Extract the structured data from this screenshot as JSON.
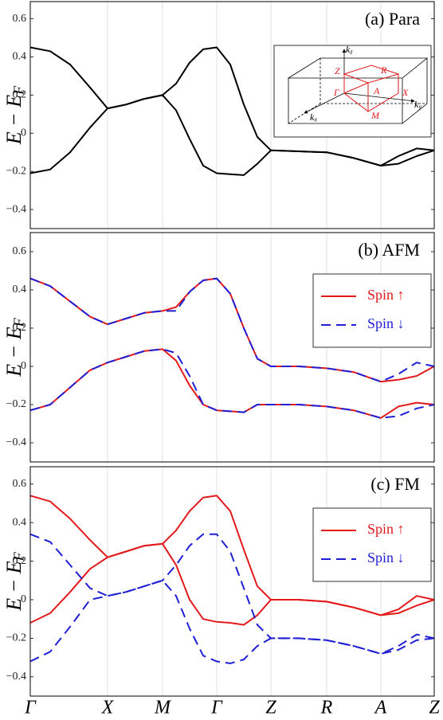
{
  "chart_data": [
    {
      "type": "line",
      "title": "(a) Para",
      "y_label": {
        "text": "E − E",
        "sub": "F"
      },
      "inset_labels": [
        {
          "text": "k",
          "sub": "z"
        },
        "Z",
        "R",
        "Γ",
        "A",
        "X",
        "M",
        {
          "text": "k",
          "sub": "y"
        },
        {
          "text": "k",
          "sub": "x"
        }
      ],
      "xlim": [
        0,
        5.07
      ],
      "xticks": [
        0,
        0.97,
        1.66,
        2.34,
        3.02,
        3.72,
        4.4,
        5.07
      ],
      "grid": true,
      "ylim": [
        -0.5,
        0.69
      ],
      "yticks": [
        {
          "value": -0.4,
          "label": "−0.4"
        },
        {
          "value": -0.2,
          "label": "−0.2"
        },
        0,
        0.2,
        0.4,
        0.6
      ],
      "x": [
        0,
        0.25,
        0.5,
        0.75,
        0.97,
        1.2,
        1.43,
        1.66,
        1.83,
        2.0,
        2.17,
        2.34,
        2.51,
        2.68,
        2.85,
        3.02,
        3.37,
        3.72,
        4.06,
        4.4,
        4.62,
        4.85,
        5.07
      ],
      "series": [
        {
          "color": "#000000",
          "line_style": "solid",
          "bands": [
            [
              0.45,
              0.43,
              0.36,
              0.24,
              0.13,
              0.15,
              0.18,
              0.2,
              0.26,
              0.37,
              0.44,
              0.45,
              0.36,
              0.15,
              -0.02,
              -0.09,
              -0.095,
              -0.1,
              -0.13,
              -0.17,
              -0.12,
              -0.08,
              -0.09
            ],
            [
              -0.21,
              -0.19,
              -0.1,
              0.03,
              0.13,
              0.15,
              0.18,
              0.2,
              0.12,
              -0.03,
              -0.17,
              -0.21,
              -0.215,
              -0.22,
              -0.16,
              -0.09,
              -0.095,
              -0.1,
              -0.13,
              -0.17,
              -0.16,
              -0.12,
              -0.09
            ]
          ]
        }
      ]
    },
    {
      "type": "line",
      "title": "(b) AFM",
      "y_label": {
        "text": "E − E",
        "sub": "F"
      },
      "legend": "upper right",
      "xlim": [
        0,
        5.07
      ],
      "xticks": [
        0,
        0.97,
        1.66,
        2.34,
        3.02,
        3.72,
        4.4,
        5.07
      ],
      "grid": true,
      "ylim": [
        -0.5,
        0.7
      ],
      "yticks": [
        {
          "value": -0.4,
          "label": "−0.4"
        },
        {
          "value": -0.2,
          "label": "−0.2"
        },
        0,
        0.2,
        0.4,
        0.6
      ],
      "x": [
        0,
        0.25,
        0.5,
        0.75,
        0.97,
        1.2,
        1.43,
        1.66,
        1.83,
        2.0,
        2.17,
        2.34,
        2.51,
        2.68,
        2.85,
        3.02,
        3.37,
        3.72,
        4.06,
        4.4,
        4.62,
        4.85,
        5.07
      ],
      "series": [
        {
          "name": "Spin ↑",
          "color": "#e31a1c",
          "line_style": "solid",
          "bands": [
            [
              0.46,
              0.42,
              0.34,
              0.26,
              0.22,
              0.25,
              0.28,
              0.29,
              0.31,
              0.39,
              0.45,
              0.46,
              0.38,
              0.2,
              0.04,
              0,
              0,
              -0.01,
              -0.03,
              -0.08,
              -0.07,
              -0.05,
              0
            ],
            [
              -0.23,
              -0.2,
              -0.11,
              -0.02,
              0.02,
              0.05,
              0.08,
              0.09,
              0.03,
              -0.1,
              -0.2,
              -0.23,
              -0.235,
              -0.24,
              -0.2,
              -0.2,
              -0.2,
              -0.21,
              -0.23,
              -0.27,
              -0.21,
              -0.19,
              -0.2
            ]
          ]
        },
        {
          "name": "Spin ↓",
          "color": "#1f1fd6",
          "line_style": "dashed",
          "bands": [
            [
              0.46,
              0.42,
              0.34,
              0.26,
              0.22,
              0.25,
              0.28,
              0.29,
              0.29,
              0.39,
              0.45,
              0.46,
              0.38,
              0.2,
              0.04,
              0,
              0,
              -0.01,
              -0.03,
              -0.08,
              -0.04,
              0.02,
              0
            ],
            [
              -0.23,
              -0.2,
              -0.11,
              -0.02,
              0.02,
              0.05,
              0.08,
              0.09,
              0.07,
              -0.05,
              -0.2,
              -0.23,
              -0.235,
              -0.24,
              -0.2,
              -0.2,
              -0.2,
              -0.21,
              -0.23,
              -0.27,
              -0.26,
              -0.22,
              -0.2
            ]
          ]
        }
      ]
    },
    {
      "type": "line",
      "title": "(c) FM",
      "y_label": {
        "text": "E − E",
        "sub": "F"
      },
      "legend": "upper right",
      "xlim": [
        0,
        5.07
      ],
      "xticks": [
        {
          "value": 0,
          "label": "Γ"
        },
        {
          "value": 0.97,
          "label": "X"
        },
        {
          "value": 1.66,
          "label": "M"
        },
        {
          "value": 2.34,
          "label": "Γ"
        },
        {
          "value": 3.02,
          "label": "Z"
        },
        {
          "value": 3.72,
          "label": "R"
        },
        {
          "value": 4.4,
          "label": "A"
        },
        {
          "value": 5.07,
          "label": "Z"
        }
      ],
      "grid": true,
      "ylim": [
        -0.5,
        0.69
      ],
      "yticks": [
        {
          "value": -0.4,
          "label": "−0.4"
        },
        {
          "value": -0.2,
          "label": "−0.2"
        },
        0,
        0.2,
        0.4,
        0.6
      ],
      "x": [
        0,
        0.25,
        0.5,
        0.75,
        0.97,
        1.2,
        1.43,
        1.66,
        1.83,
        2.0,
        2.17,
        2.34,
        2.51,
        2.68,
        2.85,
        3.02,
        3.37,
        3.72,
        4.06,
        4.4,
        4.62,
        4.85,
        5.07
      ],
      "series": [
        {
          "name": "Spin ↑",
          "color": "#e31a1c",
          "line_style": "solid",
          "bands": [
            [
              0.54,
              0.51,
              0.42,
              0.31,
              0.22,
              0.25,
              0.28,
              0.29,
              0.36,
              0.46,
              0.53,
              0.54,
              0.46,
              0.26,
              0.07,
              0,
              0,
              -0.01,
              -0.04,
              -0.08,
              -0.05,
              0.02,
              0
            ],
            [
              -0.12,
              -0.07,
              0.04,
              0.16,
              0.22,
              0.25,
              0.28,
              0.29,
              0.18,
              0,
              -0.1,
              -0.115,
              -0.12,
              -0.13,
              -0.08,
              0,
              0,
              -0.01,
              -0.04,
              -0.08,
              -0.07,
              -0.03,
              0
            ]
          ]
        },
        {
          "name": "Spin ↓",
          "color": "#1f1fd6",
          "line_style": "dashed",
          "bands": [
            [
              0.34,
              0.3,
              0.18,
              0.06,
              0.02,
              0.04,
              0.07,
              0.1,
              0.18,
              0.28,
              0.34,
              0.34,
              0.25,
              0.06,
              -0.13,
              -0.2,
              -0.2,
              -0.21,
              -0.24,
              -0.28,
              -0.24,
              -0.18,
              -0.2
            ],
            [
              -0.32,
              -0.27,
              -0.14,
              0,
              0.02,
              0.04,
              0.07,
              0.1,
              0.02,
              -0.15,
              -0.29,
              -0.32,
              -0.33,
              -0.31,
              -0.24,
              -0.2,
              -0.2,
              -0.21,
              -0.24,
              -0.28,
              -0.26,
              -0.21,
              -0.2
            ]
          ]
        }
      ]
    }
  ]
}
